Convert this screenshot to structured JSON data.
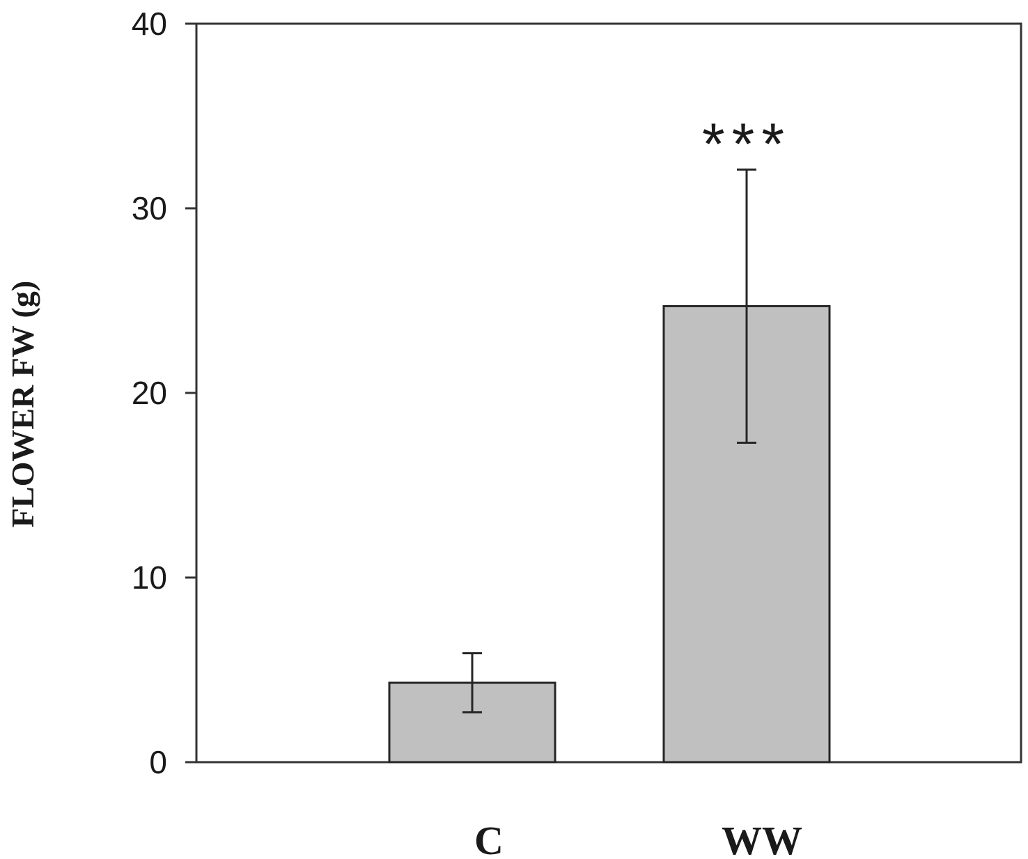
{
  "chart_data": {
    "type": "bar",
    "ylabel": "FLOWER FW (g)",
    "xlabel": "",
    "categories": [
      "C",
      "WW"
    ],
    "series": [
      {
        "values": [
          4.3,
          24.7
        ],
        "errors": [
          1.6,
          7.4
        ],
        "color": "#c0c0c0",
        "annotations": [
          "",
          "***"
        ]
      }
    ],
    "ylim": [
      0,
      40
    ],
    "yticks": [
      "0",
      "10",
      "20",
      "30",
      "40"
    ],
    "grid": false,
    "legend": "none"
  }
}
